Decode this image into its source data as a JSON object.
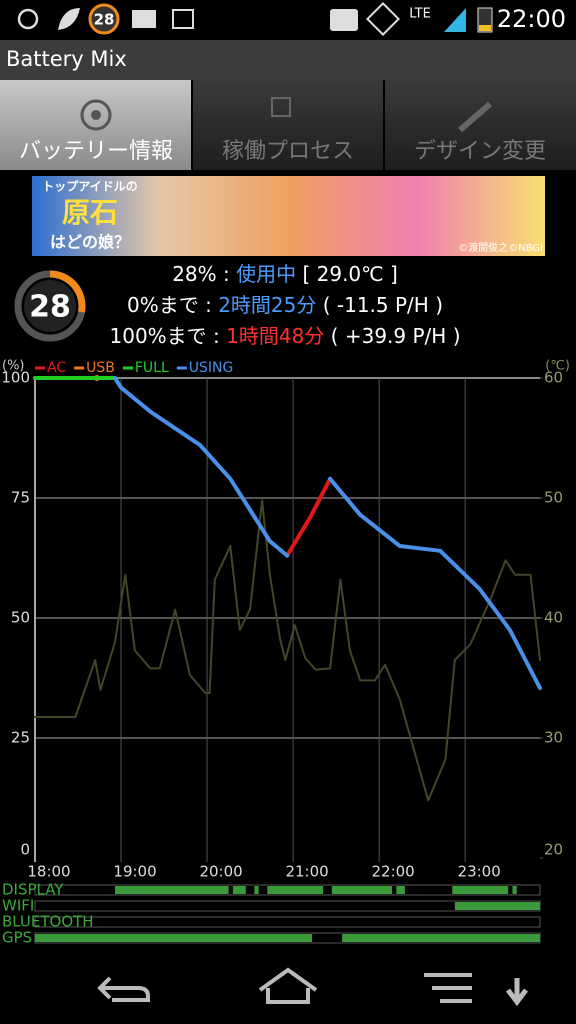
{
  "status_bar": {
    "badge": "28",
    "network": "LTE",
    "time": "22:00"
  },
  "app_title": "Battery Mix",
  "tabs": [
    "バッテリー情報",
    "稼働プロセス",
    "デザイン変更"
  ],
  "banner": {
    "lines": [
      "トップアイドルの",
      "原石",
      "はどの娘？"
    ],
    "credit": "©渡間俊之©NBGI"
  },
  "summary": {
    "level": 28,
    "ring_color": "#f08a1c",
    "rows": [
      [
        {
          "text": "28% : ",
          "color": "#ffffff"
        },
        {
          "text": "使用中",
          "color": "#4d9bff"
        },
        {
          "text": " [ 29.0℃ ]",
          "color": "#ffffff"
        }
      ],
      [
        {
          "text": "0%まで : ",
          "color": "#ffffff"
        },
        {
          "text": "2時間25分",
          "color": "#4d9bff"
        },
        {
          "text": " ( -11.5 P/H )",
          "color": "#ffffff"
        }
      ],
      [
        {
          "text": "100%まで : ",
          "color": "#ffffff"
        },
        {
          "text": "1時間48分",
          "color": "#ff3030"
        },
        {
          "text": " ( +39.9 P/H )",
          "color": "#ffffff"
        }
      ]
    ]
  },
  "chart_data": {
    "type": "line",
    "y_label": "(%)",
    "y2_label": "(℃)",
    "xlim": [
      18,
      23.87
    ],
    "xticks": [
      {
        "value": 18,
        "label": "18:00"
      },
      {
        "value": 19,
        "label": "19:00"
      },
      {
        "value": 20,
        "label": "20:00"
      },
      {
        "value": 21,
        "label": "21:00"
      },
      {
        "value": 22,
        "label": "22:00"
      },
      {
        "value": 23,
        "label": "23:00"
      }
    ],
    "ylim": [
      0,
      100
    ],
    "yticks": [
      0,
      25,
      50,
      75,
      100
    ],
    "y2lim": [
      20,
      60
    ],
    "y2ticks": [
      20,
      30,
      40,
      50,
      60
    ],
    "grid": true,
    "series": [
      {
        "name": "AC",
        "color": "#e01818",
        "x": [
          20.93,
          21.2,
          21.43
        ],
        "values": [
          63,
          71,
          79
        ]
      },
      {
        "name": "USB",
        "color": "#f07820",
        "x": [
          18.72
        ],
        "values": [
          100
        ]
      },
      {
        "name": "FULL",
        "color": "#20d020",
        "x": [
          18,
          18.93
        ],
        "values": [
          100,
          100
        ]
      },
      {
        "name": "USING",
        "color": "#4a8fe8",
        "x": [
          18.93,
          19.0,
          19.34,
          19.92,
          20.27,
          20.5,
          20.73,
          20.93,
          21.2,
          21.43,
          21.78,
          22.24,
          22.71,
          23.17,
          23.52,
          23.87
        ],
        "values": [
          100,
          98,
          93,
          86,
          79,
          72.5,
          66,
          63,
          null,
          79,
          71.5,
          65,
          64,
          56,
          47.5,
          35.4
        ]
      },
      {
        "color": "#45452a",
        "axis": "y2",
        "x": [
          18.0,
          18.47,
          18.7,
          18.76,
          18.93,
          19.05,
          19.16,
          19.34,
          19.45,
          19.63,
          19.8,
          19.98,
          20.03,
          20.09,
          20.27,
          20.38,
          20.5,
          20.64,
          20.73,
          20.85,
          20.91,
          21.02,
          21.14,
          21.26,
          21.43,
          21.55,
          21.66,
          21.78,
          21.95,
          22.07,
          22.24,
          22.57,
          22.77,
          22.88,
          23.06,
          23.29,
          23.47,
          23.58,
          23.76,
          23.87
        ],
        "values": [
          31.75,
          31.75,
          36.5,
          34,
          38,
          43.6,
          37.3,
          35.8,
          35.8,
          40.7,
          35.25,
          33.75,
          33.75,
          43.2,
          46,
          39,
          40.75,
          49.8,
          43.6,
          38.2,
          36.5,
          39.4,
          36.7,
          35.7,
          35.8,
          43.2,
          37.3,
          34.8,
          34.8,
          36.1,
          33.2,
          24.8,
          28.2,
          36.5,
          37.8,
          41.5,
          44.8,
          43.6,
          43.6,
          36.5
        ]
      }
    ],
    "status_rows": [
      {
        "name": "DISPLAY",
        "segments": [
          [
            18.93,
            20.25
          ],
          [
            20.3,
            20.45
          ],
          [
            20.55,
            20.6
          ],
          [
            20.7,
            21.35
          ],
          [
            21.45,
            22.15
          ],
          [
            22.2,
            22.3
          ],
          [
            22.85,
            23.5
          ],
          [
            23.55,
            23.6
          ]
        ]
      },
      {
        "name": "WIFI",
        "segments": [
          [
            22.88,
            23.87
          ]
        ]
      },
      {
        "name": "BLUETOOTH",
        "segments": []
      },
      {
        "name": "GPS",
        "segments": [
          [
            18.0,
            21.22
          ],
          [
            21.57,
            23.87
          ]
        ]
      }
    ]
  }
}
